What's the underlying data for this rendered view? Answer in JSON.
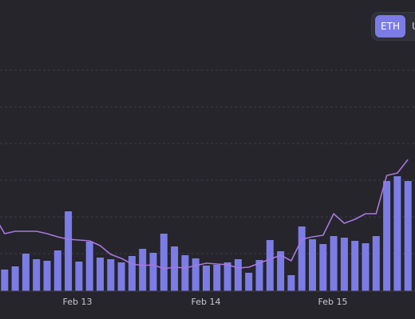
{
  "chart_data": {
    "type": "bar",
    "x_axis": {
      "ticks": [
        "Feb 13",
        "Feb 14",
        "Feb 15"
      ]
    },
    "grid": "horizontal dashed",
    "colors": {
      "background": "#25252b",
      "bars": "#7c7ce6",
      "line": "#a876e0",
      "grid": "#3d3d46"
    },
    "series": [
      {
        "kind": "bar",
        "values": [
          24,
          27,
          31,
          47,
          40,
          38,
          51,
          100,
          37,
          62,
          42,
          40,
          36,
          44,
          53,
          48,
          72,
          56,
          45,
          41,
          32,
          33,
          36,
          40,
          23,
          39,
          64,
          50,
          20,
          81,
          65,
          59,
          69,
          67,
          63,
          60,
          69,
          138,
          144,
          138
        ]
      },
      {
        "kind": "line",
        "values": [
          95,
          72,
          75,
          75,
          75,
          72,
          68,
          65,
          64,
          63,
          57,
          46,
          41,
          34,
          32,
          33,
          28,
          30,
          29,
          32,
          35,
          34,
          33,
          29,
          30,
          35,
          40,
          45,
          38,
          65,
          68,
          70,
          97,
          85,
          90,
          97,
          97,
          145,
          148,
          165
        ]
      }
    ]
  },
  "toggle": {
    "active_label": "ETH",
    "inactive_label": "U"
  }
}
